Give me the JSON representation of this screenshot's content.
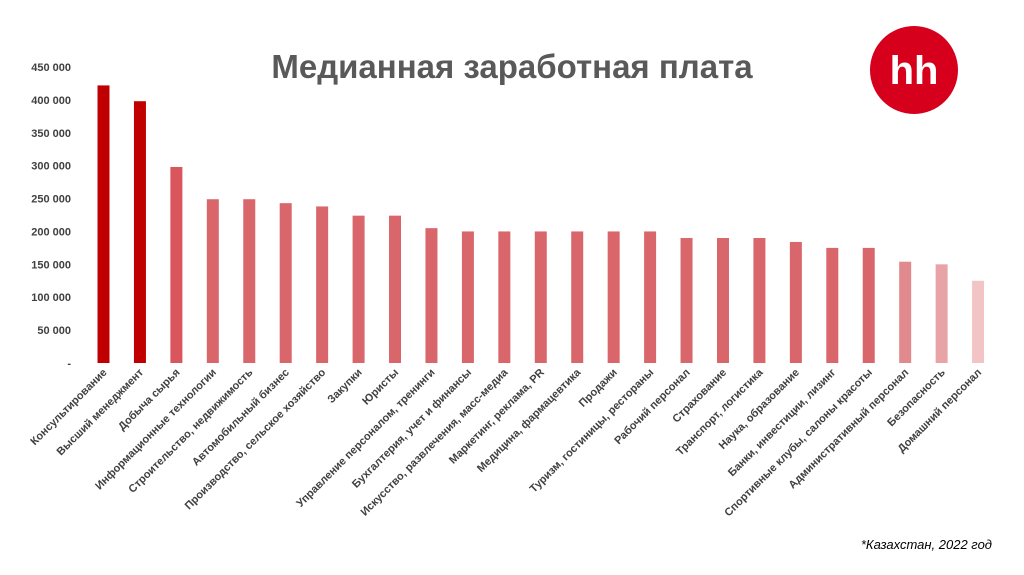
{
  "chart_data": {
    "type": "bar",
    "title": "Медианная заработная плата",
    "xlabel": "",
    "ylabel": "",
    "ylim": [
      0,
      450000
    ],
    "yticks": [
      0,
      50000,
      100000,
      150000,
      200000,
      250000,
      300000,
      350000,
      400000,
      450000
    ],
    "ytick_labels": [
      "-",
      "50 000",
      "100 000",
      "150 000",
      "200 000",
      "250 000",
      "300 000",
      "350 000",
      "400 000",
      "450 000"
    ],
    "grid": false,
    "legend": "none",
    "categories": [
      "Консультирование",
      "Высший менеджмент",
      "Добыча сырья",
      "Информационные технологии",
      "Строительство, недвижимость",
      "Автомобильный бизнес",
      "Производство, сельское хозяйство",
      "Закупки",
      "Юристы",
      "Управление персоналом, тренинги",
      "Бухгалтерия, учет и финансы",
      "Искусство, развлечения, масс-медиа",
      "Маркетинг, реклама, PR",
      "Медицина, фармацевтика",
      "Продажи",
      "Туризм, гостиницы, рестораны",
      "Рабочий персонал",
      "Страхование",
      "Транспорт, логистика",
      "Наука, образование",
      "Банки, инвестиции, лизинг",
      "Спортивные клубы, салоны красоты",
      "Административный персонал",
      "Безопасность",
      "Домашний персонал"
    ],
    "values": [
      422000,
      398000,
      298000,
      249000,
      249000,
      243000,
      238000,
      224000,
      224000,
      205000,
      200000,
      200000,
      200000,
      200000,
      200000,
      200000,
      190000,
      190000,
      190000,
      184000,
      175000,
      175000,
      154000,
      150000,
      125000
    ],
    "bar_colors": [
      "#c00000",
      "#c00000",
      "#d9565c",
      "#d9666a",
      "#d9666a",
      "#d9666a",
      "#d9666a",
      "#d9666a",
      "#d9666a",
      "#d9666a",
      "#d9666a",
      "#d9666a",
      "#d9666a",
      "#d9666a",
      "#d9666a",
      "#d9666a",
      "#d9666a",
      "#d9666a",
      "#d9666a",
      "#d9666a",
      "#d9666a",
      "#d9666a",
      "#e08a8e",
      "#e8a3a6",
      "#f2c4c5"
    ]
  },
  "logo": {
    "text": "hh",
    "color": "#d6001c"
  },
  "footnote": "*Казахстан, 2022 год"
}
